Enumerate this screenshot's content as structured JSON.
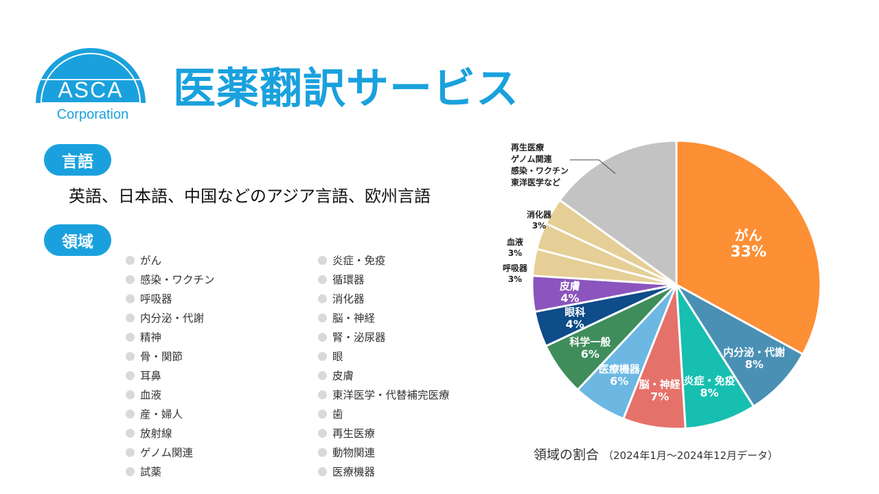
{
  "logo": {
    "name": "ASCA",
    "subtitle": "Corporation"
  },
  "title": "医薬翻訳サービス",
  "language_section": {
    "label": "言語",
    "text": "英語、日本語、中国などのアジア言語、欧州言語"
  },
  "field_section": {
    "label": "領域",
    "column1": [
      "がん",
      "感染・ワクチン",
      "呼吸器",
      "内分泌・代謝",
      "精神",
      "骨・関節",
      "耳鼻",
      "血液",
      "産・婦人",
      "放射線",
      "ゲノム関連",
      "試薬"
    ],
    "column2": [
      "炎症・免疫",
      "循環器",
      "消化器",
      "脳・神経",
      "腎・泌尿器",
      "眼",
      "皮膚",
      "東洋医学・代替補完医療",
      "歯",
      "再生医療",
      "動物関連",
      "医療機器"
    ]
  },
  "chart_caption": {
    "main": "領域の割合",
    "note": "（2024年1月～2024年12月データ）"
  },
  "chart_data": {
    "type": "pie",
    "start_angle_deg": 0,
    "direction": "clockwise",
    "slices": [
      {
        "label": "がん",
        "value": 33,
        "display": "33%",
        "color": "#fd8f35",
        "label_pos": "inside"
      },
      {
        "label": "内分泌・代謝",
        "value": 8,
        "display": "8%",
        "color": "#4a90b5",
        "label_pos": "inside"
      },
      {
        "label": "炎症・免疫",
        "value": 8,
        "display": "8%",
        "color": "#17bfb0",
        "label_pos": "inside"
      },
      {
        "label": "脳・神経",
        "value": 7,
        "display": "7%",
        "color": "#e5726a",
        "label_pos": "inside"
      },
      {
        "label": "医療機器",
        "value": 6,
        "display": "6%",
        "color": "#6cb8e3",
        "label_pos": "inside"
      },
      {
        "label": "科学一般",
        "value": 6,
        "display": "6%",
        "color": "#3e8d5b",
        "label_pos": "inside"
      },
      {
        "label": "眼科",
        "value": 4,
        "display": "4%",
        "color": "#0e4c8a",
        "label_pos": "inside"
      },
      {
        "label": "皮膚",
        "value": 4,
        "display": "4%",
        "color": "#8b55bd",
        "label_pos": "inside"
      },
      {
        "label": "呼吸器",
        "value": 3,
        "display": "3%",
        "color": "#e5cf96",
        "label_pos": "outside"
      },
      {
        "label": "血液",
        "value": 3,
        "display": "3%",
        "color": "#e5cf96",
        "label_pos": "outside"
      },
      {
        "label": "消化器",
        "value": 3,
        "display": "3%",
        "color": "#e5cf96",
        "label_pos": "outside"
      },
      {
        "label": "再生医療\nゲノム関連\n感染・ワクチン\n東洋医学など",
        "value": 15,
        "display": "",
        "color": "#c3c3c3",
        "label_pos": "outside-leader"
      }
    ]
  }
}
